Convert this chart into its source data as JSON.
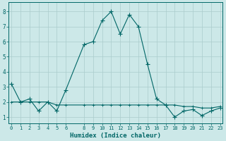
{
  "title": "",
  "xlabel": "Humidex (Indice chaleur)",
  "bg_color": "#cce8e8",
  "grid_color": "#aacccc",
  "line_color": "#006666",
  "series1_x": [
    0,
    1,
    2,
    3,
    4,
    5,
    6,
    8,
    9,
    10,
    11,
    12,
    13,
    14,
    15,
    16,
    17,
    18,
    19,
    20,
    21,
    22,
    23
  ],
  "series1_y": [
    3.2,
    2.0,
    2.2,
    1.4,
    2.0,
    1.4,
    2.8,
    5.8,
    6.0,
    7.4,
    8.0,
    6.5,
    7.8,
    7.0,
    4.5,
    2.2,
    1.8,
    1.0,
    1.4,
    1.5,
    1.1,
    1.4,
    1.6
  ],
  "series2_x": [
    0,
    1,
    2,
    3,
    4,
    5,
    6,
    8,
    9,
    10,
    11,
    12,
    13,
    14,
    15,
    16,
    17,
    18,
    19,
    20,
    21,
    22,
    23
  ],
  "series2_y": [
    2.0,
    2.0,
    2.0,
    2.0,
    2.0,
    1.8,
    1.8,
    1.8,
    1.8,
    1.8,
    1.8,
    1.8,
    1.8,
    1.8,
    1.8,
    1.8,
    1.8,
    1.8,
    1.7,
    1.7,
    1.6,
    1.6,
    1.7
  ],
  "xtick_positions": [
    0,
    1,
    2,
    3,
    4,
    5,
    6,
    8,
    9,
    10,
    11,
    12,
    13,
    14,
    15,
    16,
    17,
    18,
    19,
    20,
    21,
    22,
    23
  ],
  "xtick_labels": [
    "0",
    "1",
    "2",
    "3",
    "4",
    "5",
    "6",
    "8",
    "9",
    "10",
    "11",
    "12",
    "13",
    "14",
    "15",
    "16",
    "17",
    "18",
    "19",
    "20",
    "21",
    "22",
    "23"
  ],
  "yticks": [
    1,
    2,
    3,
    4,
    5,
    6,
    7,
    8
  ],
  "xlim": [
    -0.3,
    23.3
  ],
  "ylim": [
    0.6,
    8.6
  ],
  "xlabel_fontsize": 6.5,
  "tick_fontsize": 5.0,
  "marker": "+",
  "markersize": 4.0,
  "linewidth": 0.8
}
